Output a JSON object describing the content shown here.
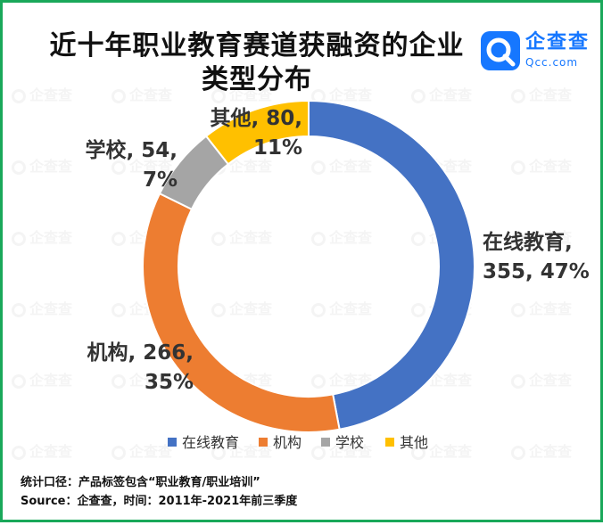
{
  "title": "近十年职业教育赛道获融资的企业类型分布",
  "logo": {
    "name": "企查查",
    "domain": "Qcc.com",
    "watermark_text": "企查查"
  },
  "chart_data": {
    "type": "pie",
    "title": "近十年职业教育赛道获融资的企业类型分布",
    "categories": [
      "在线教育",
      "机构",
      "学校",
      "其他"
    ],
    "values": [
      355,
      266,
      54,
      80
    ],
    "percents": [
      "47%",
      "35%",
      "7%",
      "11%"
    ],
    "colors": [
      "#4472c4",
      "#ed7d31",
      "#a5a5a5",
      "#ffc000"
    ],
    "labels": [
      {
        "line1": "在线教育,",
        "line2": "355, 47%"
      },
      {
        "line1": "机构, 266,",
        "line2": "35%"
      },
      {
        "line1": "学校, 54,",
        "line2": "7%"
      },
      {
        "line1": "其他, 80,",
        "line2": "11%"
      }
    ],
    "legend_position": "bottom",
    "donut": true
  },
  "notes": {
    "scope": "统计口径：产品标签包含“职业教育/职业培训”",
    "source": "Source：企查查，时间：2011年-2021年前三季度"
  }
}
